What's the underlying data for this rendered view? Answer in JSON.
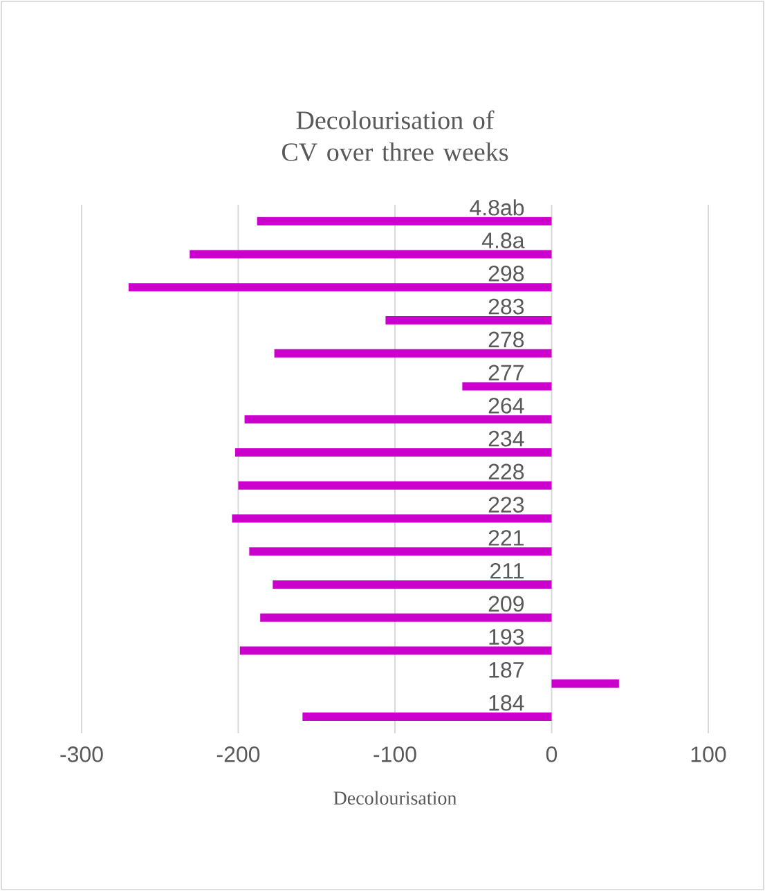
{
  "chart_data": {
    "type": "bar",
    "orientation": "horizontal",
    "title": "Decolourisation of CV over three weeks",
    "xlabel": "Decolourisation",
    "categories": [
      "4.8ab",
      "4.8a",
      "298",
      "283",
      "278",
      "277",
      "264",
      "234",
      "228",
      "223",
      "221",
      "211",
      "209",
      "193",
      "187",
      "184"
    ],
    "values": [
      -188,
      -231,
      -270,
      -106,
      -177,
      -57,
      -196,
      -202,
      -200,
      -204,
      -193,
      -178,
      -186,
      -199,
      43,
      -159
    ],
    "color": "#cc00cc",
    "xlim": [
      -300,
      100
    ],
    "xticks": [
      -300,
      -200,
      -100,
      0,
      100
    ],
    "grid": "x"
  }
}
